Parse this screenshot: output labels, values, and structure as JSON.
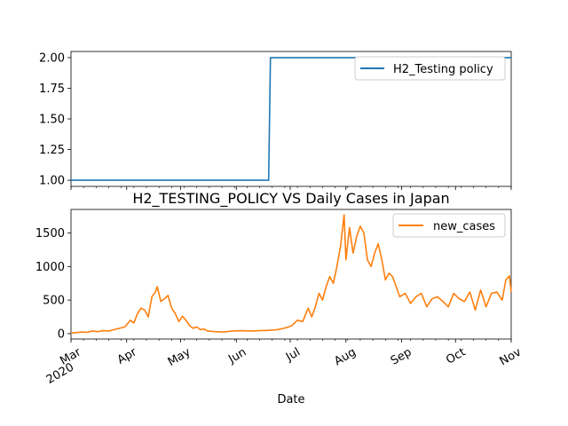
{
  "chart_data": [
    {
      "type": "line",
      "title": "",
      "xlabel": "",
      "ylabel": "",
      "xlim": [
        "2020-03-01",
        "2020-11-01"
      ],
      "ylim": [
        0.95,
        2.05
      ],
      "yticks": [
        "1.00",
        "1.25",
        "1.50",
        "1.75",
        "2.00"
      ],
      "grid": false,
      "legend": "upper right",
      "series": [
        {
          "name": "H2_Testing policy",
          "color": "#1f77b4",
          "points": [
            [
              "2020-03-01",
              1
            ],
            [
              "2020-06-19",
              1
            ],
            [
              "2020-06-20",
              2
            ],
            [
              "2020-11-01",
              2
            ]
          ]
        }
      ]
    },
    {
      "type": "line",
      "title": "H2_TESTING_POLICY VS Daily Cases in Japan",
      "xlabel": "Date",
      "ylabel": "",
      "xlim": [
        "2020-03-01",
        "2020-11-01"
      ],
      "ylim": [
        -80,
        1850
      ],
      "yticks": [
        "0",
        "500",
        "1000",
        "1500"
      ],
      "xticks": [
        {
          "date": "2020-03-01",
          "label": "Mar",
          "sublabel": "2020"
        },
        {
          "date": "2020-04-01",
          "label": "Apr",
          "sublabel": ""
        },
        {
          "date": "2020-05-01",
          "label": "May",
          "sublabel": ""
        },
        {
          "date": "2020-06-01",
          "label": "Jun",
          "sublabel": ""
        },
        {
          "date": "2020-07-01",
          "label": "Jul",
          "sublabel": ""
        },
        {
          "date": "2020-08-01",
          "label": "Aug",
          "sublabel": ""
        },
        {
          "date": "2020-09-01",
          "label": "Sep",
          "sublabel": ""
        },
        {
          "date": "2020-10-01",
          "label": "Oct",
          "sublabel": ""
        },
        {
          "date": "2020-11-01",
          "label": "Nov",
          "sublabel": ""
        }
      ],
      "grid": false,
      "legend": "upper right",
      "series": [
        {
          "name": "new_cases",
          "color": "#ff7f0e",
          "points": [
            [
              "2020-03-01",
              10
            ],
            [
              "2020-03-04",
              15
            ],
            [
              "2020-03-07",
              25
            ],
            [
              "2020-03-10",
              20
            ],
            [
              "2020-03-13",
              40
            ],
            [
              "2020-03-16",
              30
            ],
            [
              "2020-03-19",
              45
            ],
            [
              "2020-03-22",
              40
            ],
            [
              "2020-03-25",
              60
            ],
            [
              "2020-03-28",
              80
            ],
            [
              "2020-03-31",
              100
            ],
            [
              "2020-04-03",
              200
            ],
            [
              "2020-04-05",
              160
            ],
            [
              "2020-04-07",
              300
            ],
            [
              "2020-04-09",
              380
            ],
            [
              "2020-04-11",
              350
            ],
            [
              "2020-04-13",
              250
            ],
            [
              "2020-04-15",
              550
            ],
            [
              "2020-04-17",
              620
            ],
            [
              "2020-04-18",
              700
            ],
            [
              "2020-04-20",
              480
            ],
            [
              "2020-04-22",
              520
            ],
            [
              "2020-04-24",
              570
            ],
            [
              "2020-04-26",
              380
            ],
            [
              "2020-04-28",
              300
            ],
            [
              "2020-04-30",
              180
            ],
            [
              "2020-05-02",
              260
            ],
            [
              "2020-05-04",
              200
            ],
            [
              "2020-05-06",
              120
            ],
            [
              "2020-05-08",
              80
            ],
            [
              "2020-05-10",
              100
            ],
            [
              "2020-05-12",
              60
            ],
            [
              "2020-05-14",
              70
            ],
            [
              "2020-05-16",
              40
            ],
            [
              "2020-05-20",
              30
            ],
            [
              "2020-05-25",
              25
            ],
            [
              "2020-05-30",
              40
            ],
            [
              "2020-06-04",
              45
            ],
            [
              "2020-06-09",
              40
            ],
            [
              "2020-06-14",
              45
            ],
            [
              "2020-06-19",
              50
            ],
            [
              "2020-06-24",
              60
            ],
            [
              "2020-06-29",
              90
            ],
            [
              "2020-07-02",
              120
            ],
            [
              "2020-07-05",
              200
            ],
            [
              "2020-07-08",
              180
            ],
            [
              "2020-07-11",
              380
            ],
            [
              "2020-07-13",
              250
            ],
            [
              "2020-07-15",
              400
            ],
            [
              "2020-07-17",
              600
            ],
            [
              "2020-07-19",
              500
            ],
            [
              "2020-07-21",
              700
            ],
            [
              "2020-07-23",
              850
            ],
            [
              "2020-07-25",
              750
            ],
            [
              "2020-07-27",
              1000
            ],
            [
              "2020-07-29",
              1300
            ],
            [
              "2020-07-31",
              1770
            ],
            [
              "2020-08-01",
              1100
            ],
            [
              "2020-08-03",
              1580
            ],
            [
              "2020-08-05",
              1200
            ],
            [
              "2020-08-07",
              1450
            ],
            [
              "2020-08-09",
              1600
            ],
            [
              "2020-08-11",
              1500
            ],
            [
              "2020-08-13",
              1100
            ],
            [
              "2020-08-15",
              1000
            ],
            [
              "2020-08-17",
              1200
            ],
            [
              "2020-08-19",
              1340
            ],
            [
              "2020-08-21",
              1100
            ],
            [
              "2020-08-23",
              800
            ],
            [
              "2020-08-25",
              900
            ],
            [
              "2020-08-27",
              850
            ],
            [
              "2020-08-29",
              700
            ],
            [
              "2020-08-31",
              550
            ],
            [
              "2020-09-03",
              600
            ],
            [
              "2020-09-06",
              450
            ],
            [
              "2020-09-09",
              550
            ],
            [
              "2020-09-12",
              600
            ],
            [
              "2020-09-15",
              400
            ],
            [
              "2020-09-18",
              520
            ],
            [
              "2020-09-21",
              550
            ],
            [
              "2020-09-24",
              480
            ],
            [
              "2020-09-27",
              400
            ],
            [
              "2020-09-30",
              600
            ],
            [
              "2020-10-03",
              520
            ],
            [
              "2020-10-06",
              480
            ],
            [
              "2020-10-09",
              620
            ],
            [
              "2020-10-12",
              350
            ],
            [
              "2020-10-15",
              650
            ],
            [
              "2020-10-18",
              400
            ],
            [
              "2020-10-21",
              600
            ],
            [
              "2020-10-24",
              620
            ],
            [
              "2020-10-27",
              500
            ],
            [
              "2020-10-29",
              800
            ],
            [
              "2020-10-31",
              860
            ],
            [
              "2020-11-01",
              620
            ]
          ]
        }
      ]
    }
  ]
}
